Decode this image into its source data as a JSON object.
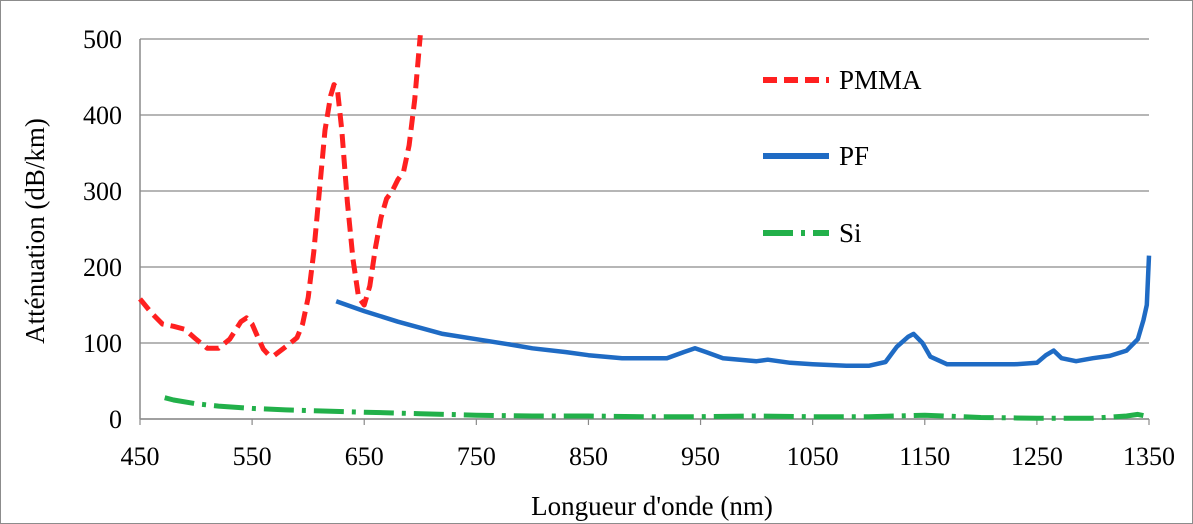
{
  "chart_data": {
    "type": "line",
    "xlabel": "Longueur d'onde (nm)",
    "ylabel": "Atténuation (dB/km)",
    "xlim": [
      450,
      1350
    ],
    "ylim": [
      0,
      500
    ],
    "x_ticks": [
      "450",
      "550",
      "650",
      "750",
      "850",
      "950",
      "1050",
      "1150",
      "1250",
      "1350"
    ],
    "y_ticks": [
      "0",
      "100",
      "200",
      "300",
      "400",
      "500"
    ],
    "grid": "horizontal",
    "legend_position": "top-right",
    "series": [
      {
        "name": "PMMA",
        "color": "#ff2020",
        "style": "dashed",
        "x": [
          450,
          460,
          470,
          480,
          490,
          500,
          510,
          520,
          530,
          540,
          545,
          550,
          555,
          560,
          565,
          570,
          580,
          590,
          595,
          600,
          605,
          610,
          615,
          620,
          623,
          626,
          630,
          635,
          640,
          645,
          650,
          655,
          660,
          665,
          670,
          675,
          680,
          685,
          690,
          695,
          700
        ],
        "y": [
          158,
          140,
          125,
          122,
          118,
          105,
          93,
          93,
          105,
          128,
          133,
          125,
          108,
          92,
          84,
          84,
          95,
          107,
          125,
          160,
          220,
          300,
          380,
          425,
          440,
          435,
          380,
          285,
          210,
          160,
          150,
          175,
          225,
          265,
          290,
          300,
          315,
          325,
          360,
          420,
          505
        ]
      },
      {
        "name": "PF",
        "color": "#1f6bc4",
        "style": "solid",
        "x": [
          625,
          650,
          680,
          700,
          720,
          750,
          780,
          800,
          830,
          850,
          880,
          900,
          920,
          935,
          945,
          955,
          970,
          1000,
          1010,
          1030,
          1050,
          1080,
          1100,
          1115,
          1125,
          1135,
          1140,
          1148,
          1155,
          1170,
          1200,
          1230,
          1250,
          1258,
          1265,
          1272,
          1285,
          1300,
          1315,
          1330,
          1340,
          1345,
          1348,
          1350
        ],
        "y": [
          155,
          142,
          128,
          120,
          112,
          105,
          98,
          93,
          88,
          84,
          80,
          80,
          80,
          88,
          93,
          88,
          80,
          76,
          78,
          74,
          72,
          70,
          70,
          75,
          95,
          108,
          112,
          100,
          82,
          72,
          72,
          72,
          74,
          84,
          90,
          80,
          76,
          80,
          83,
          90,
          105,
          130,
          150,
          215
        ]
      },
      {
        "name": "Si",
        "color": "#22b04a",
        "style": "dash-dot",
        "x": [
          472,
          480,
          500,
          520,
          550,
          580,
          600,
          650,
          700,
          750,
          800,
          850,
          900,
          950,
          1000,
          1050,
          1100,
          1150,
          1200,
          1250,
          1300,
          1330,
          1340,
          1350
        ],
        "y": [
          28,
          25,
          20,
          17,
          14,
          12,
          11,
          9,
          7,
          5,
          4,
          4,
          3,
          3,
          4,
          3,
          3,
          5,
          2,
          1,
          1,
          4,
          6,
          3
        ]
      }
    ]
  }
}
